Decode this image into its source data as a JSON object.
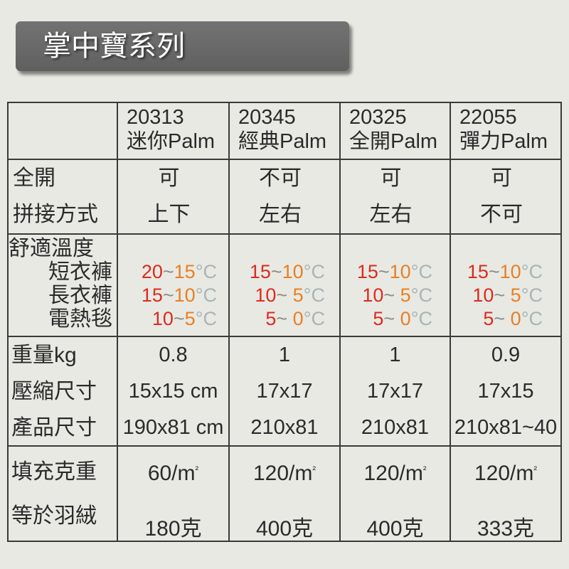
{
  "banner": {
    "title": "掌中寶系列"
  },
  "colors": {
    "background": "#e8e9e3",
    "banner": "#686868",
    "banner_text": "#ffffff",
    "text": "#2a2a2a",
    "border": "#3a3a3a",
    "temp_from": "#de2a1f",
    "temp_separator": "#8c8c8c",
    "temp_to": "#ea7e22",
    "temp_unit": "#a9b4b8"
  },
  "models": [
    {
      "code": "20313",
      "name": "迷你Palm"
    },
    {
      "code": "20345",
      "name": "經典Palm"
    },
    {
      "code": "20325",
      "name": "全開Palm"
    },
    {
      "code": "22055",
      "name": "彈力Palm"
    }
  ],
  "features": {
    "full_open": {
      "label": "全開",
      "values": [
        "可",
        "不可",
        "可",
        "可"
      ]
    },
    "joining": {
      "label": "拼接方式",
      "values": [
        "上下",
        "左右",
        "左右",
        "不可"
      ]
    }
  },
  "comfort": {
    "label": "舒適溫度",
    "separator": "~",
    "unit": "°C",
    "rows": [
      {
        "label": "短衣褲",
        "ranges": [
          {
            "from": "20",
            "to": "15"
          },
          {
            "from": "15",
            "to": "10"
          },
          {
            "from": "15",
            "to": "10"
          },
          {
            "from": "15",
            "to": "10"
          }
        ]
      },
      {
        "label": "長衣褲",
        "ranges": [
          {
            "from": "15",
            "to": "10"
          },
          {
            "from": "10",
            "to": " 5"
          },
          {
            "from": "10",
            "to": " 5"
          },
          {
            "from": "10",
            "to": " 5"
          }
        ]
      },
      {
        "label": "電熱毯",
        "ranges": [
          {
            "from": "10",
            "to": "5"
          },
          {
            "from": "5",
            "to": " 0"
          },
          {
            "from": "5",
            "to": " 0"
          },
          {
            "from": "5",
            "to": " 0"
          }
        ]
      }
    ]
  },
  "specs": {
    "weight": {
      "label": "重量kg",
      "values": [
        "0.8",
        "1",
        "1",
        "0.9"
      ]
    },
    "packed_size": {
      "label": "壓縮尺寸",
      "values": [
        "15x15 cm",
        "17x17",
        "17x17",
        "17x15"
      ]
    },
    "product_size": {
      "label": "產品尺寸",
      "values": [
        "190x81 cm",
        "210x81",
        "210x81",
        "210x81~40"
      ]
    }
  },
  "fill": {
    "weight": {
      "label": "填充克重",
      "values": [
        {
          "text": "60/m",
          "sup": "²"
        },
        {
          "text": "120/m",
          "sup": "²"
        },
        {
          "text": "120/m",
          "sup": "²"
        },
        {
          "text": "120/m",
          "sup": "²"
        }
      ]
    },
    "down_equivalent": {
      "label": "等於羽絨",
      "values": [
        "180克",
        "400克",
        "400克",
        "333克"
      ]
    }
  }
}
